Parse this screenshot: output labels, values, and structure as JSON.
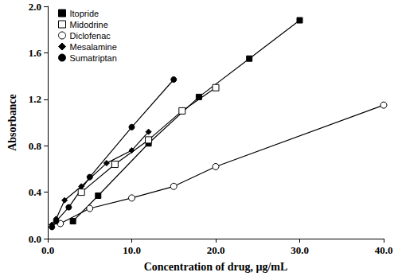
{
  "chart_data": {
    "type": "line",
    "x_label": "Concentration of drug, µg/mL",
    "y_label": "Absorbance",
    "xlim": [
      0,
      40
    ],
    "xticks": [
      {
        "value": 0,
        "label": "0.0"
      },
      {
        "value": 10,
        "label": "10.0"
      },
      {
        "value": 20,
        "label": "20.0"
      },
      {
        "value": 30,
        "label": "30.0"
      },
      {
        "value": 40,
        "label": "40.0"
      }
    ],
    "ylim": [
      0,
      2
    ],
    "yticks": [
      {
        "value": 0,
        "label": "0.0"
      },
      0.4,
      0.8,
      1.2,
      1.6,
      {
        "value": 2,
        "label": "2.0"
      }
    ],
    "grid": false,
    "legend": "upper left",
    "series": [
      {
        "name": "Itopride",
        "color": "#000000",
        "marker": "square",
        "line_style": "solid",
        "x": [
          3,
          6,
          12,
          18,
          24,
          30
        ],
        "values": [
          0.15,
          0.37,
          0.82,
          1.22,
          1.55,
          1.88
        ]
      },
      {
        "name": "Midodrine",
        "color": "#000000",
        "marker": "square_open",
        "line_style": "solid",
        "x": [
          4,
          8,
          12,
          16,
          20
        ],
        "values": [
          0.4,
          0.64,
          0.85,
          1.1,
          1.3
        ]
      },
      {
        "name": "Diclofenac",
        "color": "#000000",
        "marker": "circle_open",
        "line_style": "solid",
        "x": [
          1.5,
          5,
          10,
          15,
          20,
          40
        ],
        "values": [
          0.13,
          0.26,
          0.35,
          0.45,
          0.62,
          1.15
        ]
      },
      {
        "name": "Mesalamine",
        "color": "#000000",
        "marker": "diamond",
        "line_style": "solid",
        "x": [
          0.5,
          1,
          2,
          4,
          7,
          10,
          12
        ],
        "values": [
          0.12,
          0.17,
          0.33,
          0.45,
          0.65,
          0.76,
          0.92
        ]
      },
      {
        "name": "Sumatriptan",
        "color": "#000000",
        "marker": "circle",
        "line_style": "solid",
        "x": [
          0.5,
          1,
          2.5,
          5,
          10,
          15
        ],
        "values": [
          0.1,
          0.15,
          0.27,
          0.53,
          0.96,
          1.37
        ]
      }
    ]
  }
}
